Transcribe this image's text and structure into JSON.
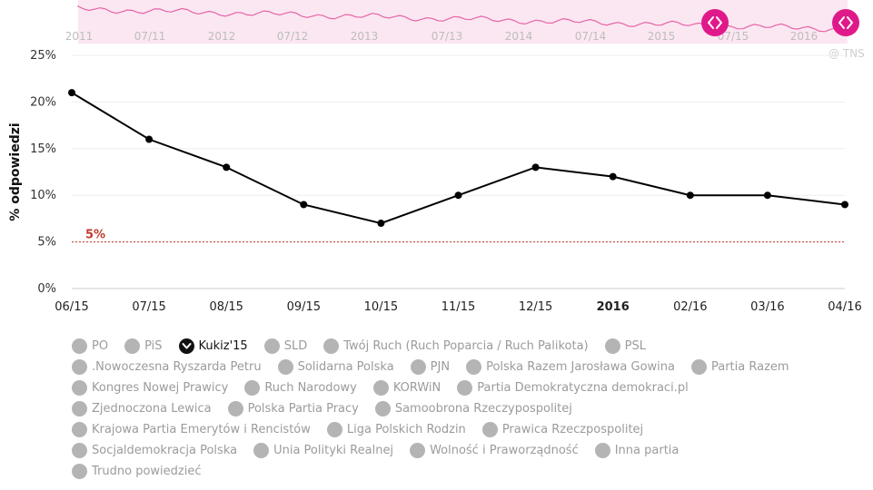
{
  "source": "@ TNS",
  "colors": {
    "line": "#000000",
    "threshold": "#c0392b",
    "navigator": "#e24c9a",
    "handle": "#e0198a",
    "inactive": "#b4b4b4"
  },
  "navigator": {
    "labels": [
      "2011",
      "07/11",
      "2012",
      "07/12",
      "2013",
      "07/13",
      "2014",
      "07/14",
      "2015",
      "07/15",
      "2016"
    ],
    "handles": [
      "left-handle",
      "right-handle"
    ]
  },
  "chart_data": {
    "type": "line",
    "x": [
      "06/15",
      "07/15",
      "08/15",
      "09/15",
      "10/15",
      "11/15",
      "12/15",
      "2016",
      "02/16",
      "03/16",
      "04/16"
    ],
    "series": [
      {
        "name": "Kukiz'15",
        "values": [
          21,
          16,
          13,
          9,
          7,
          10,
          13,
          12,
          10,
          10,
          9
        ]
      }
    ],
    "ylabel": "% odpowiedzi",
    "yticks": [
      "0%",
      "5%",
      "10%",
      "15%",
      "20%",
      "25%"
    ],
    "ylim": [
      0,
      25
    ],
    "threshold": {
      "value": 5,
      "label": "5%"
    },
    "grid": true,
    "legend": "bottom"
  },
  "legend": {
    "rows": [
      [
        {
          "label": "PO",
          "active": false
        },
        {
          "label": "PiS",
          "active": false
        },
        {
          "label": "Kukiz'15",
          "active": true
        },
        {
          "label": "SLD",
          "active": false
        },
        {
          "label": "Twój Ruch (Ruch Poparcia / Ruch Palikota)",
          "active": false
        },
        {
          "label": "PSL",
          "active": false
        }
      ],
      [
        {
          "label": ".Nowoczesna Ryszarda Petru",
          "active": false
        },
        {
          "label": "Solidarna Polska",
          "active": false
        },
        {
          "label": "PJN",
          "active": false
        },
        {
          "label": "Polska Razem Jarosława Gowina",
          "active": false
        },
        {
          "label": "Partia Razem",
          "active": false
        }
      ],
      [
        {
          "label": "Kongres Nowej Prawicy",
          "active": false
        },
        {
          "label": "Ruch Narodowy",
          "active": false
        },
        {
          "label": "KORWiN",
          "active": false
        },
        {
          "label": "Partia Demokratyczna demokraci.pl",
          "active": false
        }
      ],
      [
        {
          "label": "Zjednoczona Lewica",
          "active": false
        },
        {
          "label": "Polska Partia Pracy",
          "active": false
        },
        {
          "label": "Samoobrona Rzeczypospolitej",
          "active": false
        }
      ],
      [
        {
          "label": "Krajowa Partia Emerytów i Rencistów",
          "active": false
        },
        {
          "label": "Liga Polskich Rodzin",
          "active": false
        },
        {
          "label": "Prawica Rzeczpospolitej",
          "active": false
        }
      ],
      [
        {
          "label": "Socjaldemokracja Polska",
          "active": false
        },
        {
          "label": "Unia Polityki Realnej",
          "active": false
        },
        {
          "label": "Wolność i Praworządność",
          "active": false
        },
        {
          "label": "Inna partia",
          "active": false
        }
      ],
      [
        {
          "label": "Trudno powiedzieć",
          "active": false
        }
      ]
    ]
  }
}
